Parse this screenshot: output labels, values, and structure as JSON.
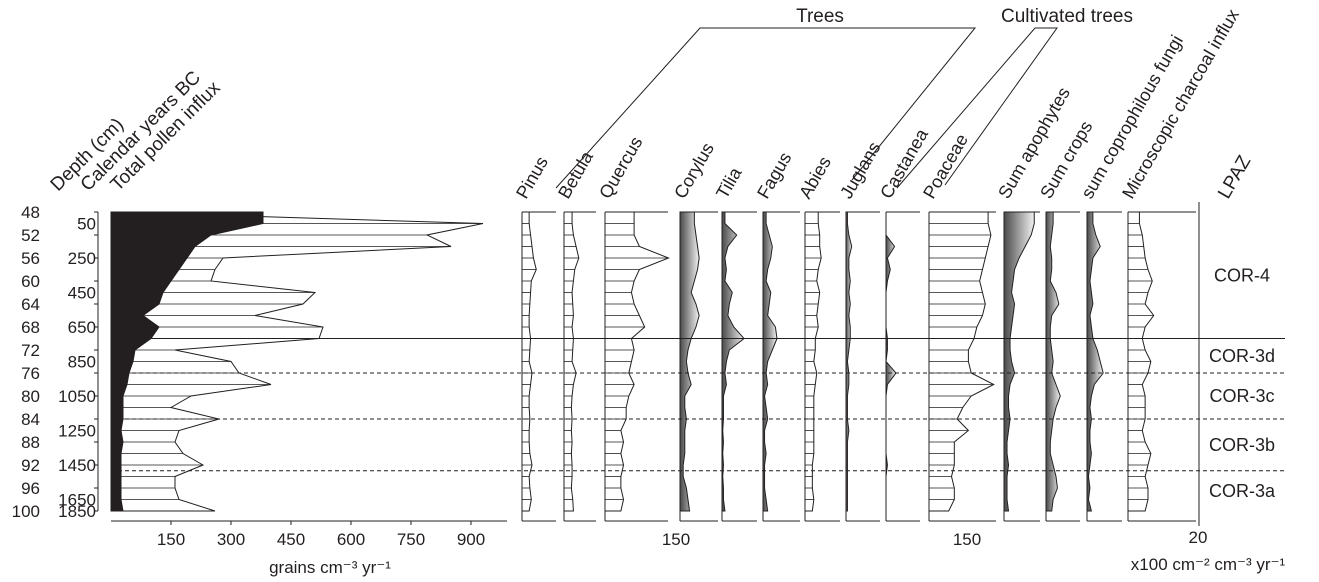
{
  "chart_data": {
    "type": "area",
    "group_labels": [
      "Trees",
      "Cultivated trees"
    ],
    "depth_axis": {
      "label": "Depth (cm)",
      "ticks": [
        "48",
        "52",
        "56",
        "60",
        "64",
        "68",
        "72",
        "76",
        "80",
        "84",
        "88",
        "92",
        "96",
        "100"
      ]
    },
    "age_axis": {
      "label": "Calendar years BC",
      "ticks": [
        "50",
        "250",
        "450",
        "650",
        "850",
        "1050",
        "1250",
        "1450",
        "1650",
        "1850"
      ]
    },
    "total_influx": {
      "label": "Total pollen influx",
      "unit": "grains cm⁻³ yr⁻¹",
      "xticks": [
        "150",
        "300",
        "450",
        "600",
        "750",
        "900"
      ],
      "depths": [
        50,
        52,
        54,
        56,
        58,
        60,
        62,
        64,
        66,
        68,
        70,
        72,
        74,
        76,
        78,
        80,
        82,
        84,
        86,
        88,
        90,
        92,
        94,
        96,
        98,
        100
      ],
      "outline": [
        930,
        790,
        850,
        280,
        260,
        250,
        510,
        480,
        360,
        530,
        520,
        160,
        300,
        320,
        400,
        200,
        150,
        270,
        170,
        160,
        180,
        230,
        160,
        160,
        170,
        260
      ],
      "filled": [
        380,
        250,
        210,
        190,
        170,
        150,
        130,
        120,
        80,
        120,
        100,
        60,
        55,
        45,
        40,
        30,
        30,
        30,
        25,
        30,
        25,
        25,
        25,
        25,
        25,
        30
      ]
    },
    "taxa": [
      {
        "name": "Pinus",
        "style": "hatch",
        "values": [
          10,
          12,
          14,
          16,
          20,
          13,
          12,
          11,
          10,
          10,
          12,
          11,
          10,
          14,
          12,
          10,
          10,
          11,
          10,
          10,
          11,
          14,
          10,
          11,
          13,
          10
        ]
      },
      {
        "name": "Betula",
        "style": "hatch",
        "values": [
          12,
          14,
          18,
          22,
          16,
          14,
          12,
          13,
          14,
          12,
          14,
          13,
          12,
          18,
          14,
          12,
          11,
          12,
          11,
          12,
          11,
          12,
          12,
          11,
          13,
          14
        ]
      },
      {
        "name": "Quercus",
        "style": "hatch",
        "values": [
          22,
          22,
          26,
          48,
          26,
          22,
          20,
          22,
          26,
          30,
          20,
          22,
          20,
          18,
          22,
          18,
          16,
          16,
          12,
          14,
          12,
          14,
          12,
          12,
          14,
          12
        ]
      },
      {
        "name": "Corylus",
        "style": "shade",
        "values": [
          18,
          20,
          22,
          24,
          22,
          18,
          14,
          20,
          24,
          20,
          14,
          10,
          8,
          10,
          14,
          6,
          6,
          8,
          6,
          6,
          6,
          4,
          4,
          8,
          10,
          12
        ]
      },
      {
        "name": "Tilia",
        "style": "shade",
        "values": [
          4,
          20,
          8,
          4,
          6,
          4,
          14,
          10,
          8,
          16,
          30,
          10,
          6,
          4,
          6,
          2,
          2,
          2,
          1,
          2,
          1,
          2,
          1,
          2,
          2,
          4
        ]
      },
      {
        "name": "Fagus",
        "style": "shade",
        "values": [
          4,
          8,
          12,
          10,
          6,
          4,
          10,
          8,
          6,
          16,
          18,
          12,
          6,
          4,
          6,
          2,
          4,
          6,
          2,
          2,
          4,
          2,
          2,
          2,
          4,
          6
        ]
      },
      {
        "name": "Abies",
        "style": "hatch",
        "values": [
          18,
          20,
          20,
          22,
          18,
          16,
          20,
          18,
          16,
          18,
          14,
          14,
          12,
          16,
          14,
          12,
          12,
          12,
          12,
          12,
          12,
          10,
          10,
          10,
          12,
          10
        ]
      },
      {
        "name": "Juglans",
        "style": "shade",
        "values": [
          2,
          4,
          8,
          4,
          4,
          6,
          4,
          6,
          4,
          6,
          6,
          4,
          2,
          4,
          4,
          2,
          2,
          2,
          4,
          2,
          2,
          2,
          2,
          2,
          2,
          2
        ]
      },
      {
        "name": "Castanea",
        "style": "shade",
        "values": [
          0,
          0,
          12,
          2,
          6,
          2,
          0,
          0,
          0,
          0,
          2,
          2,
          0,
          14,
          2,
          0,
          0,
          0,
          0,
          0,
          0,
          2,
          0,
          0,
          0,
          0
        ]
      },
      {
        "name": "Poaceae",
        "style": "hatch",
        "values": [
          42,
          44,
          42,
          40,
          38,
          36,
          38,
          40,
          38,
          34,
          32,
          28,
          28,
          30,
          46,
          30,
          24,
          20,
          28,
          18,
          18,
          18,
          16,
          18,
          18,
          14
        ]
      },
      {
        "name": "Sum apophytes",
        "style": "shade",
        "values": [
          40,
          36,
          28,
          20,
          14,
          12,
          10,
          14,
          12,
          10,
          8,
          8,
          10,
          14,
          8,
          6,
          6,
          8,
          6,
          4,
          4,
          6,
          4,
          4,
          4,
          6
        ]
      },
      {
        "name": "Sum crops",
        "style": "shade",
        "values": [
          10,
          8,
          6,
          8,
          8,
          6,
          14,
          18,
          8,
          6,
          6,
          8,
          10,
          8,
          14,
          20,
          14,
          10,
          8,
          6,
          6,
          10,
          14,
          16,
          10,
          8
        ]
      },
      {
        "name": "sum coprophilous fungi",
        "style": "shade",
        "values": [
          8,
          12,
          18,
          8,
          6,
          4,
          6,
          8,
          4,
          6,
          8,
          14,
          18,
          22,
          10,
          6,
          4,
          6,
          4,
          4,
          6,
          4,
          2,
          4,
          2,
          6
        ]
      },
      {
        "name": "Microscopic charcoal influx",
        "style": "hatch",
        "values": [
          8,
          10,
          11,
          12,
          14,
          17,
          14,
          12,
          18,
          12,
          10,
          12,
          16,
          14,
          10,
          12,
          12,
          12,
          10,
          12,
          16,
          14,
          12,
          14,
          14,
          12
        ]
      }
    ],
    "taxa_axis_labels": [
      "150",
      "150",
      "150",
      "20"
    ],
    "taxa_axis_unit": "x100 cm⁻² cm⁻³ yr⁻¹",
    "lpaz": {
      "label": "LPAZ",
      "zones": [
        {
          "name": "COR-4",
          "top": 48,
          "bottom": 70
        },
        {
          "name": "COR-3d",
          "top": 70,
          "bottom": 76
        },
        {
          "name": "COR-3c",
          "top": 76,
          "bottom": 84
        },
        {
          "name": "COR-3b",
          "top": 84,
          "bottom": 93
        },
        {
          "name": "COR-3a",
          "top": 93,
          "bottom": 100
        }
      ]
    }
  }
}
